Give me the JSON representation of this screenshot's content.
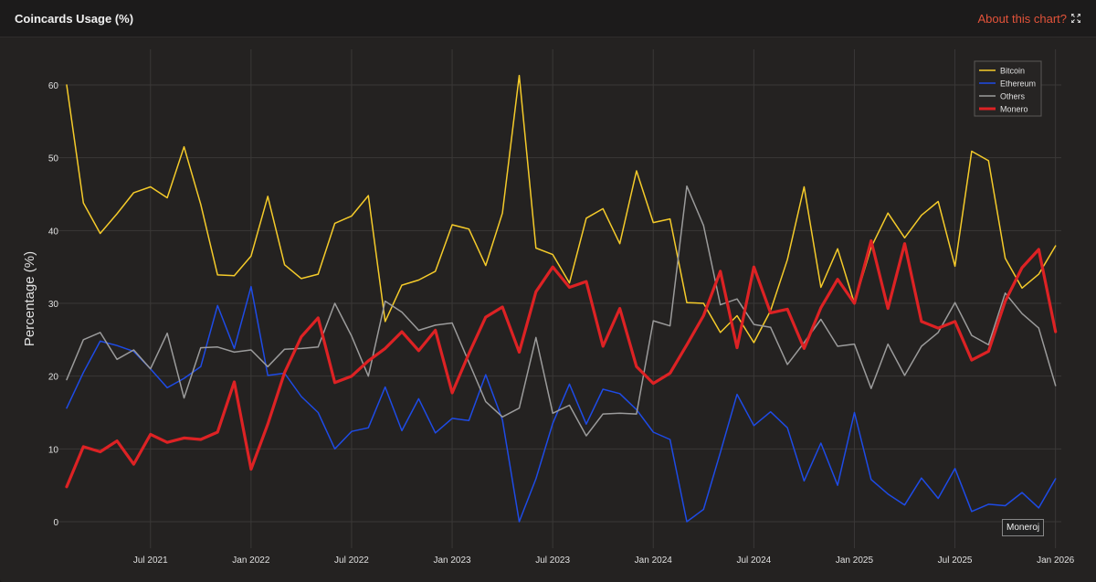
{
  "header": {
    "title": "Coincards Usage (%)",
    "about_label": "About this chart?",
    "expand_icon": "expand-icon"
  },
  "tooltip": {
    "text": "Moneroj"
  },
  "colors": {
    "Bitcoin": "#f5cb2a",
    "Ethereum": "#1e4be6",
    "Others": "#9b9b9b",
    "Monero": "#dd2224",
    "grid": "#3a3837",
    "text": "#e0e0e0"
  },
  "chart_data": {
    "type": "line",
    "title": "Coincards Usage (%)",
    "xlabel": "",
    "ylabel": "Percentage (%)",
    "ylim": [
      -2,
      64
    ],
    "yticks": [
      0,
      10,
      20,
      30,
      40,
      50,
      60
    ],
    "xticks": [
      "Jul 2021",
      "Jan 2022",
      "Jul 2022",
      "Jan 2023",
      "Jul 2023",
      "Jan 2024",
      "Jul 2024",
      "Jan 2025",
      "Jul 2025",
      "Jan 2026"
    ],
    "x_start": "Feb 2021",
    "x_end": "Mar 2026",
    "grid": true,
    "legend_position": "top-right",
    "series": [
      {
        "name": "Bitcoin",
        "values": [
          60,
          43.8,
          39.6,
          42.3,
          45.2,
          46,
          44.5,
          51.5,
          43.6,
          33.9,
          33.8,
          36.5,
          44.7,
          35.3,
          33.4,
          34,
          41,
          42,
          44.8,
          27.5,
          32.5,
          33.2,
          34.4,
          40.8,
          40.2,
          35.2,
          42.4,
          61.3,
          37.6,
          36.7,
          32.8,
          41.7,
          43,
          38.2,
          48.2,
          41.1,
          41.6,
          30.1,
          30,
          26,
          28.3,
          24.6,
          29,
          36,
          46,
          32.2,
          37.5,
          30,
          37.7,
          42.4,
          39,
          42.1,
          44,
          35.1,
          50.9,
          49.6,
          36.2,
          32.1,
          34,
          37.9
        ]
      },
      {
        "name": "Ethereum",
        "values": [
          15.6,
          20.5,
          24.8,
          24.2,
          23.4,
          21,
          18.4,
          19.7,
          21.3,
          29.7,
          23.8,
          32.3,
          20.1,
          20.4,
          17.2,
          15,
          10,
          12.4,
          12.9,
          18.5,
          12.5,
          16.9,
          12.2,
          14.2,
          13.9,
          20.2,
          14,
          0,
          5.9,
          13.5,
          18.9,
          13.4,
          18.2,
          17.6,
          15.4,
          12.3,
          11.3,
          0,
          1.7,
          9.5,
          17.5,
          13.2,
          15.1,
          12.9,
          5.6,
          10.8,
          5,
          15,
          5.8,
          3.8,
          2.3,
          6,
          3.2,
          7.3,
          1.4,
          2.4,
          2.2,
          4,
          1.9,
          5.9
        ]
      },
      {
        "name": "Others",
        "values": [
          19.5,
          25,
          26,
          22.3,
          23.6,
          21,
          25.9,
          17,
          23.9,
          24,
          23.3,
          23.6,
          21.3,
          23.7,
          23.8,
          24,
          30,
          25.5,
          20,
          30.3,
          28.8,
          26.3,
          27,
          27.3,
          21.9,
          16.5,
          14.4,
          15.6,
          25.3,
          14.9,
          16,
          11.8,
          14.8,
          14.9,
          14.8,
          27.6,
          26.9,
          46.1,
          40.7,
          29.8,
          30.6,
          27.1,
          26.7,
          21.6,
          24.6,
          27.8,
          24.1,
          24.4,
          18.3,
          24.4,
          20.1,
          24.1,
          26,
          30.1,
          25.6,
          24.3,
          31.4,
          28.6,
          26.6,
          18.7
        ]
      },
      {
        "name": "Monero",
        "values": [
          4.8,
          10.3,
          9.6,
          11.1,
          7.9,
          12,
          10.9,
          11.5,
          11.3,
          12.3,
          19.2,
          7.2,
          13.4,
          20.5,
          25.4,
          28,
          19.1,
          20,
          22.1,
          23.8,
          26.1,
          23.5,
          26.3,
          17.7,
          23.1,
          28.1,
          29.5,
          23.3,
          31.6,
          35,
          32.2,
          33,
          24.1,
          29.3,
          21.3,
          19,
          20.4,
          24.3,
          28.3,
          34.4,
          23.9,
          35,
          28.7,
          29.2,
          23.8,
          29.4,
          33.3,
          30,
          38.6,
          29.3,
          38.2,
          27.5,
          26.6,
          27.5,
          22.2,
          23.4,
          30.3,
          34.9,
          37.4,
          26.1
        ]
      }
    ]
  }
}
